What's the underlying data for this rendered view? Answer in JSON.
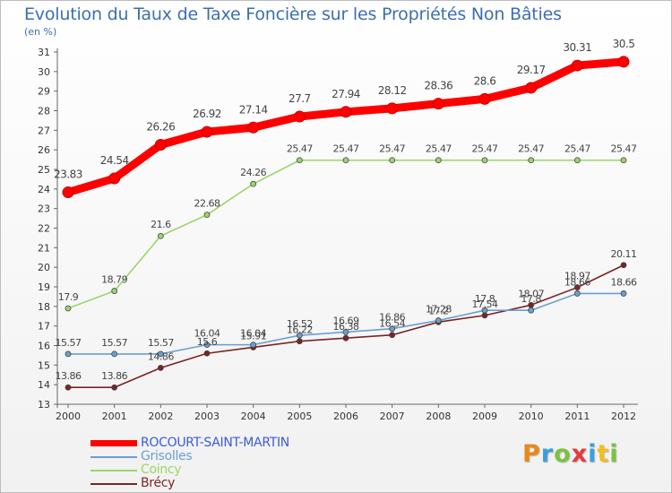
{
  "header": {
    "title": "Evolution du Taux de Taxe Foncière sur les Propriétés Non Bâties",
    "subtitle": "(en %)"
  },
  "logo": {
    "text": "Proxiti",
    "colors": [
      "#e8891c",
      "#3aa0dd",
      "#7cc242",
      "#e23b3b",
      "#3aa0dd",
      "#f2c01e",
      "#7cc242"
    ]
  },
  "chart_data": {
    "type": "line",
    "title": "Evolution du Taux de Taxe Foncière sur les Propriétés Non Bâties",
    "ylabel": "(en %)",
    "xlabel": "",
    "x": [
      "2000",
      "2001",
      "2002",
      "2003",
      "2004",
      "2005",
      "2006",
      "2007",
      "2008",
      "2009",
      "2010",
      "2011",
      "2012"
    ],
    "ylim": [
      13,
      31
    ],
    "yticks": [
      13,
      14,
      15,
      16,
      17,
      18,
      19,
      20,
      21,
      22,
      23,
      24,
      25,
      26,
      27,
      28,
      29,
      30,
      31
    ],
    "grid": false,
    "legend": "bottom-left",
    "series": [
      {
        "name": "ROCOURT-SAINT-MARTIN",
        "color": "#ff0000",
        "legend_color": "#3b5bdb",
        "values": [
          23.83,
          24.54,
          26.26,
          26.92,
          27.14,
          27.7,
          27.94,
          28.12,
          28.36,
          28.6,
          29.17,
          30.31,
          30.5
        ],
        "labels": [
          "23.83",
          "24.54",
          "26.26",
          "26.92",
          "27.14",
          "27.7",
          "27.94",
          "28.12",
          "28.36",
          "28.6",
          "29.17",
          "30.31",
          "30.5"
        ]
      },
      {
        "name": "Grisolles",
        "color": "#6a9fd0",
        "values": [
          15.57,
          15.57,
          15.57,
          16.04,
          16.04,
          16.52,
          16.69,
          16.86,
          17.28,
          17.8,
          17.8,
          18.66,
          18.66
        ],
        "labels": [
          "15.57",
          "15.57",
          "15.57",
          "16.04",
          "16.04",
          "16.52",
          "16.69",
          "16.86",
          "17.28",
          "17.8",
          "17.8",
          "18.66",
          "18.66"
        ]
      },
      {
        "name": "Coincy",
        "color": "#9cd56a",
        "values": [
          17.9,
          18.79,
          21.6,
          22.68,
          24.26,
          25.47,
          25.47,
          25.47,
          25.47,
          25.47,
          25.47,
          25.47,
          25.47
        ],
        "labels": [
          "17.9",
          "18.79",
          "21.6",
          "22.68",
          "24.26",
          "25.47",
          "25.47",
          "25.47",
          "25.47",
          "25.47",
          "25.47",
          "25.47",
          "25.47"
        ]
      },
      {
        "name": "Brécy",
        "color": "#7a2424",
        "values": [
          13.86,
          13.86,
          14.86,
          15.6,
          15.91,
          16.22,
          16.38,
          16.54,
          17.2,
          17.54,
          18.07,
          18.97,
          20.11
        ],
        "labels": [
          "13.86",
          "13.86",
          "14.86",
          "15.6",
          "15.91",
          "16.22",
          "16.38",
          "16.54",
          "17.2",
          "17.54",
          "18.07",
          "18.97",
          "20.11"
        ]
      }
    ]
  }
}
